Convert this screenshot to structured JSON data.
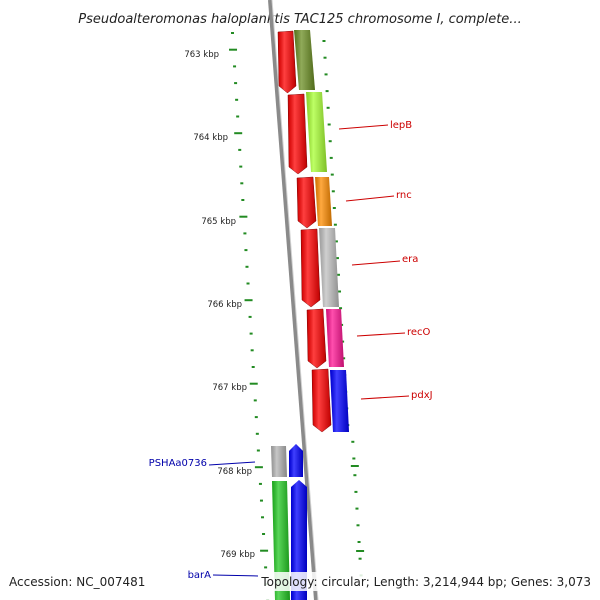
{
  "title": "Pseudoalteromonas haloplanktis TAC125 chromosome I, complete...",
  "accession": "Accession: NC_007481",
  "topology": "Topology: circular; Length: 3,214,944 bp; Genes: 3,073",
  "ticks": [
    "763 kbp",
    "764 kbp",
    "765 kbp",
    "766 kbp",
    "767 kbp",
    "768 kbp",
    "769 kbp"
  ],
  "genes": [
    {
      "label": "lepB",
      "color": "#a8ff33"
    },
    {
      "label": "rnc",
      "color": "#ff8c00"
    },
    {
      "label": "era",
      "color": "#c0c0c0"
    },
    {
      "label": "recO",
      "color": "#ff1493"
    },
    {
      "label": "pdxJ",
      "color": "#0000ff"
    },
    {
      "label": "PSHAa0736",
      "color": "#b4b4b4"
    },
    {
      "label": "barA",
      "color": "#22c822"
    }
  ],
  "colors": {
    "forward_label": "#cc0000",
    "reverse_label": "#0000aa",
    "cds": "#ff0000",
    "tick": "#228b22",
    "backbone": "#888888"
  }
}
